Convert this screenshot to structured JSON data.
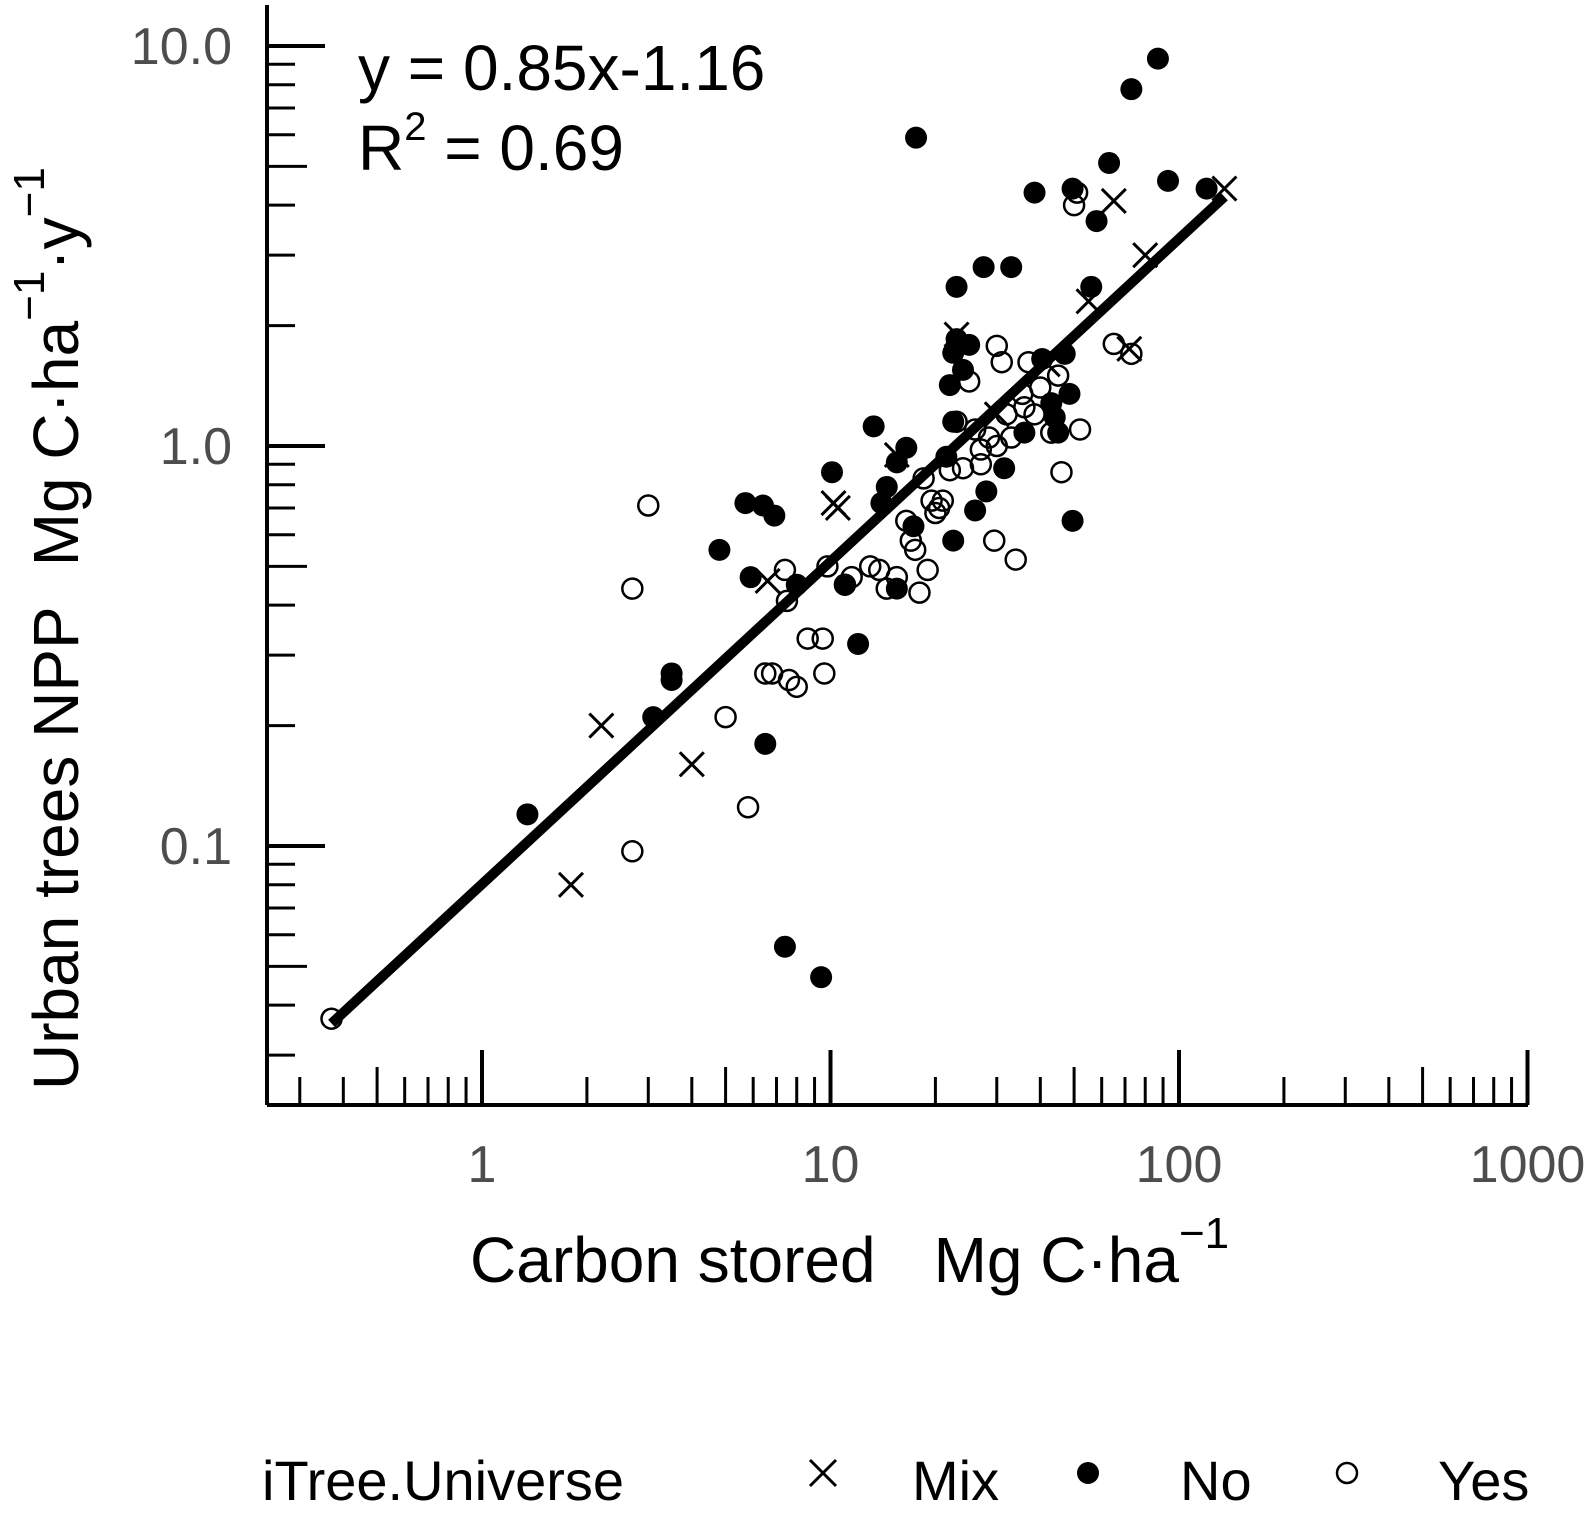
{
  "chart_data": {
    "type": "scatter",
    "title": "",
    "xlabel": {
      "main": "Carbon stored",
      "unit": "Mg C·ha",
      "sup": "−1"
    },
    "ylabel": {
      "main": "Urban trees NPP",
      "unit": "Mg C·ha",
      "sup1": "−1",
      "mid": "·y",
      "sup2": "−1"
    },
    "x_scale": "log",
    "y_scale": "log",
    "xlim": [
      0.25,
      1000
    ],
    "ylim": [
      0.03,
      10.0
    ],
    "x_ticks": [
      1,
      10,
      100,
      1000
    ],
    "x_tick_labels": [
      "1",
      "10",
      "100",
      "1000"
    ],
    "y_ticks": [
      0.1,
      1.0,
      10.0
    ],
    "y_tick_labels": [
      "0.1",
      "1.0",
      "10.0"
    ],
    "annotations": {
      "equation": "y = 0.85x-1.16",
      "r2_prefix": "R",
      "r2_sup": "2",
      "r2_value": " = 0.69"
    },
    "fit_line": {
      "x": [
        0.37,
        135
      ],
      "y": [
        0.036,
        4.2
      ]
    },
    "legend": {
      "title": "iTree.Universe",
      "position": "bottom"
    },
    "series": [
      {
        "name": "Mix",
        "marker": "x",
        "points": [
          [
            1.8,
            0.08
          ],
          [
            2.2,
            0.2
          ],
          [
            4.0,
            0.16
          ],
          [
            6.6,
            0.46
          ],
          [
            10.5,
            0.7
          ],
          [
            10.2,
            0.72
          ],
          [
            15.5,
            0.95
          ],
          [
            23.0,
            1.9
          ],
          [
            55,
            2.3
          ],
          [
            65,
            4.1
          ],
          [
            72,
            1.75
          ],
          [
            80,
            3.0
          ],
          [
            135,
            4.4
          ],
          [
            42,
            1.6
          ],
          [
            30,
            1.2
          ]
        ]
      },
      {
        "name": "No",
        "marker": "filled-circle",
        "points": [
          [
            1.35,
            0.12
          ],
          [
            3.1,
            0.21
          ],
          [
            3.5,
            0.27
          ],
          [
            3.5,
            0.26
          ],
          [
            4.8,
            0.55
          ],
          [
            5.7,
            0.72
          ],
          [
            6.4,
            0.71
          ],
          [
            6.9,
            0.67
          ],
          [
            5.9,
            0.47
          ],
          [
            6.5,
            0.18
          ],
          [
            7.4,
            0.056
          ],
          [
            9.4,
            0.047
          ],
          [
            10.1,
            0.86
          ],
          [
            12.0,
            0.32
          ],
          [
            13.3,
            1.12
          ],
          [
            14.5,
            0.79
          ],
          [
            15.5,
            0.91
          ],
          [
            16.5,
            0.99
          ],
          [
            17.3,
            0.63
          ],
          [
            17.6,
            5.9
          ],
          [
            21.5,
            0.94
          ],
          [
            22.5,
            1.71
          ],
          [
            22.0,
            1.42
          ],
          [
            22.5,
            1.15
          ],
          [
            22.5,
            0.58
          ],
          [
            23.0,
            1.85
          ],
          [
            23.0,
            2.5
          ],
          [
            25.0,
            1.79
          ],
          [
            26.0,
            0.69
          ],
          [
            27.5,
            2.8
          ],
          [
            28.0,
            0.77
          ],
          [
            31.5,
            0.88
          ],
          [
            33.0,
            2.8
          ],
          [
            38.5,
            4.3
          ],
          [
            40.5,
            1.65
          ],
          [
            43.0,
            1.28
          ],
          [
            45.0,
            1.08
          ],
          [
            47.0,
            1.7
          ],
          [
            48.5,
            1.35
          ],
          [
            49.5,
            4.4
          ],
          [
            49.5,
            0.65
          ],
          [
            58.0,
            3.65
          ],
          [
            56.0,
            2.5
          ],
          [
            63.0,
            5.1
          ],
          [
            73.0,
            7.8
          ],
          [
            87.0,
            9.3
          ],
          [
            93.0,
            4.6
          ],
          [
            120.0,
            4.4
          ],
          [
            15.5,
            0.44
          ],
          [
            11.0,
            0.45
          ],
          [
            8.0,
            0.45
          ],
          [
            14.0,
            0.72
          ],
          [
            24.0,
            1.55
          ],
          [
            36.0,
            1.08
          ],
          [
            44.0,
            1.18
          ]
        ]
      },
      {
        "name": "Yes",
        "marker": "open-circle",
        "points": [
          [
            0.37,
            0.037
          ],
          [
            2.7,
            0.097
          ],
          [
            2.7,
            0.44
          ],
          [
            3.0,
            0.71
          ],
          [
            5.0,
            0.21
          ],
          [
            5.8,
            0.125
          ],
          [
            6.5,
            0.27
          ],
          [
            6.8,
            0.27
          ],
          [
            7.4,
            0.49
          ],
          [
            7.5,
            0.41
          ],
          [
            7.6,
            0.26
          ],
          [
            8.0,
            0.25
          ],
          [
            8.6,
            0.33
          ],
          [
            9.5,
            0.33
          ],
          [
            9.6,
            0.27
          ],
          [
            9.8,
            0.5
          ],
          [
            11.0,
            0.45
          ],
          [
            11.5,
            0.47
          ],
          [
            13.0,
            0.5
          ],
          [
            13.8,
            0.49
          ],
          [
            14.5,
            0.44
          ],
          [
            15.5,
            0.47
          ],
          [
            16.5,
            0.65
          ],
          [
            17.0,
            0.58
          ],
          [
            17.5,
            0.55
          ],
          [
            18.0,
            0.43
          ],
          [
            18.5,
            0.83
          ],
          [
            19.0,
            0.49
          ],
          [
            19.5,
            0.73
          ],
          [
            20.0,
            0.68
          ],
          [
            21.0,
            0.73
          ],
          [
            22.0,
            0.87
          ],
          [
            23.0,
            1.15
          ],
          [
            24.0,
            0.88
          ],
          [
            25.0,
            1.45
          ],
          [
            26.0,
            1.1
          ],
          [
            27.0,
            0.98
          ],
          [
            28.5,
            1.05
          ],
          [
            29.5,
            0.58
          ],
          [
            30.0,
            1.78
          ],
          [
            31.0,
            1.62
          ],
          [
            32.0,
            1.2
          ],
          [
            33.0,
            1.05
          ],
          [
            34.0,
            0.52
          ],
          [
            35.5,
            1.35
          ],
          [
            37.0,
            1.62
          ],
          [
            38.5,
            1.2
          ],
          [
            40.0,
            1.4
          ],
          [
            43.0,
            1.08
          ],
          [
            45.0,
            1.5
          ],
          [
            46.0,
            0.86
          ],
          [
            50.0,
            4.0
          ],
          [
            51.0,
            4.3
          ],
          [
            52.0,
            1.1
          ],
          [
            65.0,
            1.8
          ],
          [
            73.0,
            1.7
          ],
          [
            27.0,
            0.9
          ],
          [
            30.0,
            1.0
          ],
          [
            36.0,
            1.25
          ],
          [
            20.5,
            0.7
          ]
        ]
      }
    ]
  }
}
